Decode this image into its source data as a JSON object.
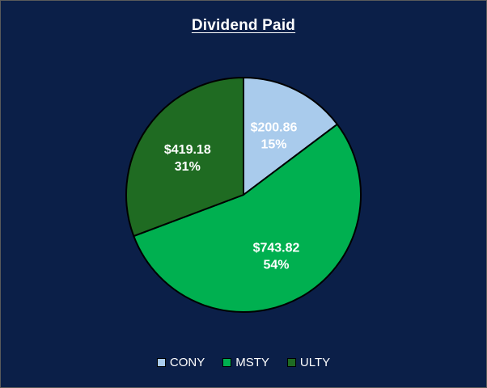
{
  "chart_data": {
    "type": "pie",
    "title": "Dividend Paid",
    "slices": [
      {
        "name": "CONY",
        "value": 200.86,
        "value_label": "$200.86",
        "percent_label": "15%",
        "color": "#a9cbec"
      },
      {
        "name": "MSTY",
        "value": 743.82,
        "value_label": "$743.82",
        "percent_label": "54%",
        "color": "#00b050"
      },
      {
        "name": "ULTY",
        "value": 419.18,
        "value_label": "$419.18",
        "percent_label": "31%",
        "color": "#1f6b22"
      }
    ],
    "legend_position": "bottom",
    "background": "#0b1f48",
    "border_color": "#000000"
  }
}
